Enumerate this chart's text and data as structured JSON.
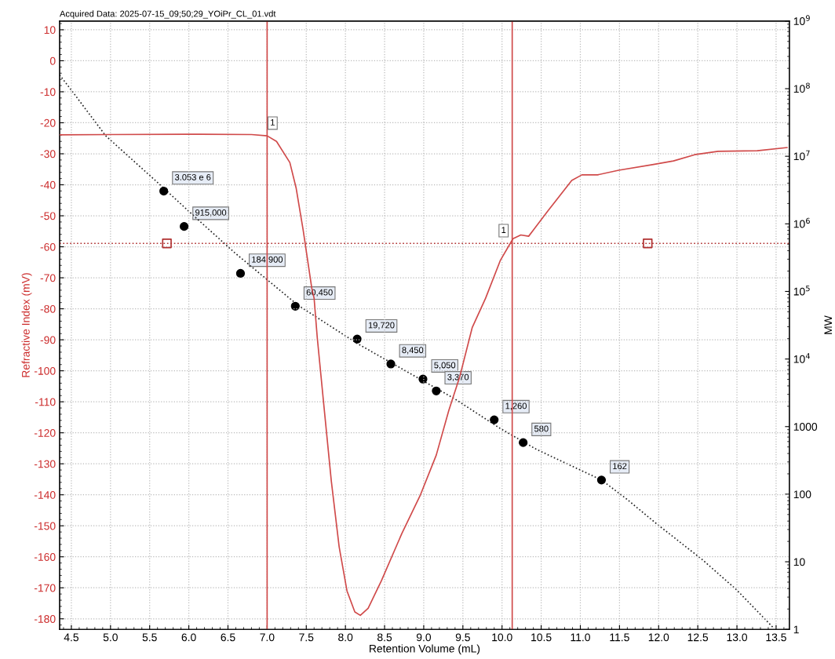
{
  "chart_data": {
    "type": "line",
    "title": "Acquired Data: 2025-07-15_09;50;29_YOiPr_CL_01.vdt",
    "xlabel": "Retention Volume (mL)",
    "ylabel": "Refractive Index (mV)",
    "y2label": "MW",
    "xlim": [
      4.35,
      13.67
    ],
    "xticks": [
      4.5,
      {
        "value": 5,
        "label": "5.0"
      },
      5.5,
      {
        "value": 6,
        "label": "6.0"
      },
      6.5,
      {
        "value": 7,
        "label": "7.0"
      },
      7.5,
      {
        "value": 8,
        "label": "8.0"
      },
      8.5,
      {
        "value": 9,
        "label": "9.0"
      },
      9.5,
      {
        "value": 10,
        "label": "10.0"
      },
      10.5,
      {
        "value": 11,
        "label": "11.0"
      },
      11.5,
      {
        "value": 12,
        "label": "12.0"
      },
      12.5,
      {
        "value": 13,
        "label": "13.0"
      },
      13.5
    ],
    "ylim": [
      -183.4,
      12.8
    ],
    "yticks": [
      10,
      0,
      -10,
      -20,
      -30,
      -40,
      -50,
      -60,
      -70,
      -80,
      -90,
      -100,
      -110,
      -120,
      -130,
      -140,
      -150,
      -160,
      -170,
      -180
    ],
    "y2lim": [
      1,
      1000000000
    ],
    "y2ticks": [
      {
        "value": 1000000000,
        "label": "10$^{9}$"
      },
      {
        "value": 100000000,
        "label": "10$^{8}$"
      },
      {
        "value": 10000000,
        "label": "10$^{7}$"
      },
      {
        "value": 1000000,
        "label": "10$^{6}$"
      },
      {
        "value": 100000,
        "label": "10$^{5}$"
      },
      {
        "value": 10000,
        "label": "10$^{4}$"
      },
      1000,
      100,
      10,
      1
    ],
    "log": "y2",
    "grid": true,
    "legend": false,
    "series": [
      {
        "color": "#d04a4a",
        "line_style": "solid",
        "marker": "none",
        "x": [
          4.35,
          5.0,
          6.0,
          6.8,
          7.0,
          7.12,
          7.29,
          7.37,
          7.46,
          7.57,
          7.6,
          7.64,
          7.72,
          7.82,
          7.92,
          8.02,
          8.12,
          8.19,
          8.29,
          8.46,
          8.72,
          8.96,
          9.16,
          9.32,
          9.46,
          9.62,
          9.79,
          9.98,
          10.14,
          10.24,
          10.34,
          10.4,
          10.59,
          10.89,
          11.02,
          11.22,
          11.49,
          11.92,
          12.19,
          12.46,
          12.76,
          13.26,
          13.64
        ],
        "values": [
          -23.9,
          -23.8,
          -23.7,
          -23.8,
          -24.2,
          -26,
          -32.8,
          -41,
          -54.6,
          -73.3,
          -76.6,
          -89.2,
          -110,
          -135.6,
          -156.8,
          -171,
          -177.8,
          -178.9,
          -176.6,
          -167.7,
          -152.5,
          -139.9,
          -127.2,
          -112.8,
          -101.9,
          -86,
          -76.6,
          -64.3,
          -57.4,
          -56.2,
          -56.6,
          -54.6,
          -48.3,
          -38.6,
          -36.8,
          -36.8,
          -35.3,
          -33.5,
          -32.3,
          -30.3,
          -29.2,
          -29,
          -28
        ]
      },
      {
        "type": "line",
        "axis": "y2",
        "color": "#222222",
        "line_style": "dotted",
        "marker": "none",
        "x": [
          4.35,
          4.5,
          4.94,
          5.59,
          6.09,
          6.59,
          7.39,
          8.15,
          9.39,
          9.97,
          10.44,
          11.27,
          11.59,
          11.98,
          12.56,
          12.99,
          13.46
        ],
        "values": [
          160000000,
          95000000,
          20000000,
          4200000,
          1230000,
          370000,
          63000,
          17000,
          2600,
          950,
          460,
          162,
          85,
          36,
          10.7,
          3.9,
          1.07
        ]
      },
      {
        "type": "scatter",
        "axis": "y2",
        "color": "#000000",
        "marker": "circle",
        "x": [
          5.68,
          5.94,
          6.66,
          7.36,
          8.15,
          8.58,
          8.99,
          9.16,
          9.9,
          10.27,
          11.27
        ],
        "values": [
          3053000,
          915000,
          184900,
          60450,
          19720,
          8450,
          5050,
          3370,
          1260,
          580,
          162
        ],
        "value_labels": [
          "3.053 e 6",
          "915,000",
          "184,900",
          "60,450",
          "19,720",
          "8,450",
          "5,050",
          "3,370",
          "1,260",
          "580",
          "162"
        ]
      },
      {
        "type": "scatter",
        "color": "#b03030",
        "marker": "square",
        "x": [
          5.72,
          11.86
        ],
        "values": [
          -58.9,
          -58.9
        ]
      }
    ],
    "ref_lines": [
      {
        "axis": "x",
        "value": 7.0,
        "color": "#d04a4a",
        "line_style": "solid"
      },
      {
        "axis": "x",
        "value": 10.13,
        "color": "#d04a4a",
        "line_style": "solid"
      },
      {
        "axis": "y",
        "value": -58.9,
        "color": "#b03030",
        "line_style": "dotted"
      }
    ],
    "annotations": [
      {
        "text": "1",
        "x": 7.07,
        "y": -20.1
      },
      {
        "text": "1",
        "x": 10.02,
        "y": -54.8
      }
    ]
  }
}
